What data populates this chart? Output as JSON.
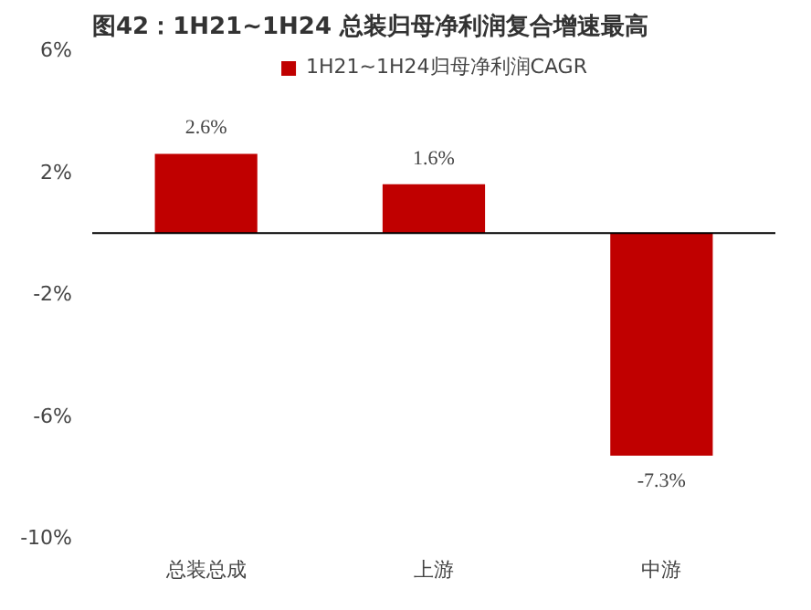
{
  "chart_data": {
    "type": "bar",
    "title": "图42：1H21~1H24 总装归母净利润复合增速最高",
    "categories": [
      "总装总成",
      "上游",
      "中游"
    ],
    "series": [
      {
        "name": "1H21~1H24归母净利润CAGR",
        "color": "#c00000",
        "values": [
          2.6,
          1.6,
          -7.3
        ],
        "value_labels": [
          "2.6%",
          "1.6%",
          "-7.3%"
        ]
      }
    ],
    "ylim": [
      -10,
      6
    ],
    "yticks": [
      {
        "value": -10,
        "label": "-10%"
      },
      {
        "value": -6,
        "label": "-6%"
      },
      {
        "value": -2,
        "label": "-2%"
      },
      {
        "value": 2,
        "label": "2%"
      },
      {
        "value": 6,
        "label": "6%"
      }
    ],
    "grid": false,
    "legend": "top"
  }
}
